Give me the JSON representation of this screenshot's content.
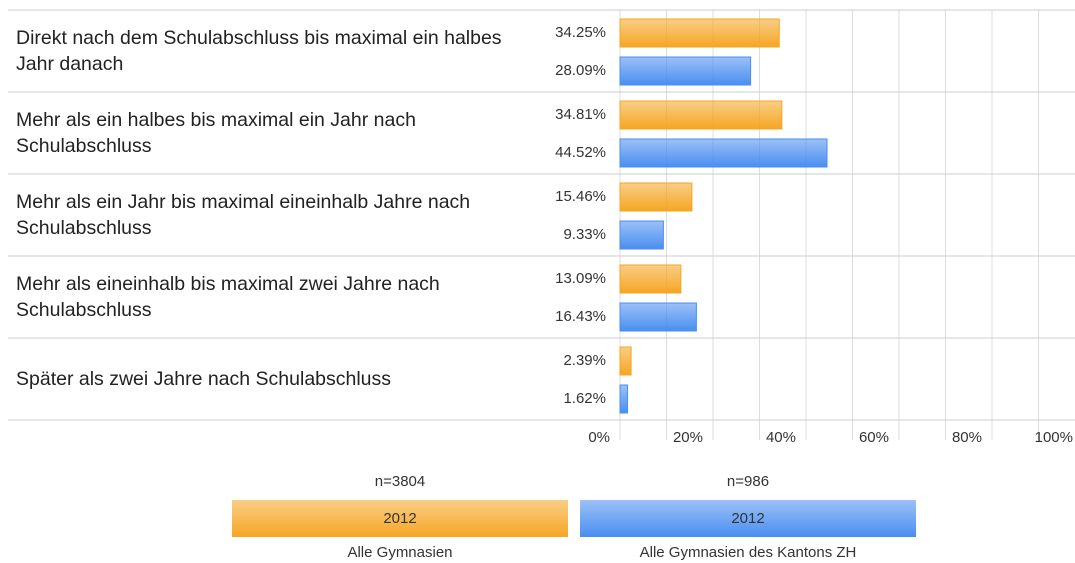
{
  "chart_data": {
    "type": "hbar",
    "categories": [
      "Direkt nach dem Schulabschluss bis maximal ein halbes Jahr danach",
      "Mehr als ein halbes bis maximal ein Jahr nach Schulabschluss",
      "Mehr als ein Jahr bis maximal eineinhalb Jahre nach Schulabschluss",
      "Mehr als eineinhalb bis maximal zwei Jahre nach Schulabschluss",
      "Später als zwei Jahre nach Schulabschluss"
    ],
    "series": [
      {
        "name": "Alle Gymnasien",
        "n": "n=3804",
        "year": "2012",
        "color": "#f5a623",
        "values": [
          34.25,
          34.81,
          15.46,
          13.09,
          2.39
        ],
        "value_labels": [
          "34.25%",
          "34.81%",
          "15.46%",
          "13.09%",
          "2.39%"
        ]
      },
      {
        "name": "Alle Gymnasien des Kantons ZH",
        "n": "n=986",
        "year": "2012",
        "color": "#4a8ef0",
        "values": [
          28.09,
          44.52,
          9.33,
          16.43,
          1.62
        ],
        "value_labels": [
          "28.09%",
          "44.52%",
          "9.33%",
          "16.43%",
          "1.62%"
        ]
      }
    ],
    "xlim": [
      0,
      100
    ],
    "xticks": [
      {
        "value": 0,
        "label": "0%"
      },
      {
        "value": 20,
        "label": "20%"
      },
      {
        "value": 40,
        "label": "40%"
      },
      {
        "value": 60,
        "label": "60%"
      },
      {
        "value": 80,
        "label": "80%"
      },
      {
        "value": 100,
        "label": "100%"
      }
    ],
    "xgrid_minor": [
      10,
      30,
      50,
      70,
      90
    ],
    "grid": true
  }
}
